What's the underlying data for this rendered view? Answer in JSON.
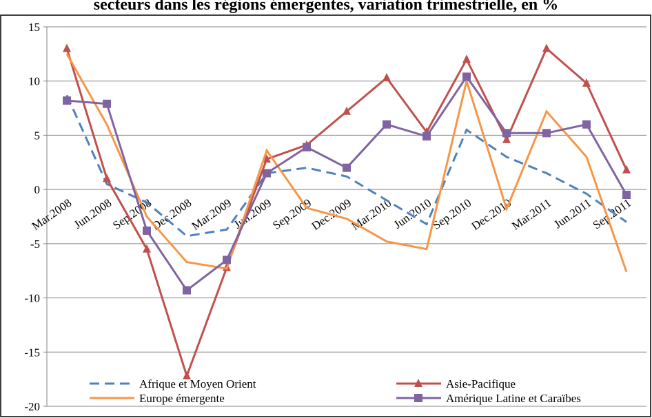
{
  "chart_data": {
    "type": "line",
    "title": "secteurs dans les régions émergentes, variation trimestrielle, en %",
    "categories": [
      "Mar.2008",
      "Jun.2008",
      "Sep.2008",
      "Dec.2008",
      "Mar.2009",
      "Jun.2009",
      "Sep.2009",
      "Dec.2009",
      "Mar.2010",
      "Jun.2010",
      "Sep.2010",
      "Dec.2010",
      "Mar.2011",
      "Jun.2011",
      "Sep.2011"
    ],
    "ylim": [
      -20,
      15
    ],
    "yticks": [
      -20,
      -15,
      -10,
      -5,
      0,
      5,
      10,
      15
    ],
    "grid": true,
    "series": [
      {
        "name": "Afrique et Moyen Orient",
        "color": "#4f81bd",
        "dash": true,
        "marker": "none",
        "values": [
          8.7,
          0.5,
          -1.2,
          -4.3,
          -3.7,
          1.5,
          2,
          1.2,
          -1,
          -3.2,
          5.5,
          3,
          1.5,
          -0.4,
          -3
        ]
      },
      {
        "name": "Asie-Pacifique",
        "color": "#c0504d",
        "dash": false,
        "marker": "triangle",
        "values": [
          13,
          1,
          -5.5,
          -17.2,
          -7.2,
          2.8,
          4.1,
          7.2,
          10.3,
          5.3,
          12,
          4.6,
          13,
          9.8,
          1.8
        ]
      },
      {
        "name": "Europe émergente",
        "color": "#f79646",
        "dash": false,
        "marker": "none",
        "values": [
          12.5,
          6,
          -2.5,
          -6.7,
          -7.3,
          3.6,
          -1.7,
          -2.7,
          -4.8,
          -5.5,
          10,
          -1.8,
          7.2,
          3,
          -7.6
        ]
      },
      {
        "name": "Amérique Latine et Caraïbes",
        "color": "#8064a2",
        "dash": false,
        "marker": "square",
        "values": [
          8.2,
          7.9,
          -3.8,
          -9.3,
          -6.5,
          1.5,
          3.9,
          2,
          6,
          4.9,
          10.4,
          5.2,
          5.2,
          6,
          -0.5
        ]
      }
    ]
  }
}
